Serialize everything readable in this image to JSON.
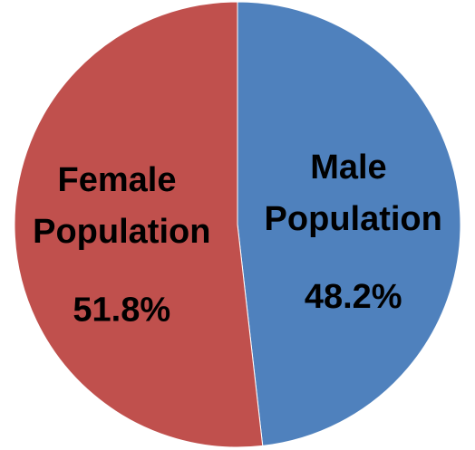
{
  "chart_data": {
    "type": "pie",
    "categories": [
      "Male Population",
      "Female Population"
    ],
    "values": [
      48.2,
      51.8
    ],
    "value_labels": [
      "48.2%",
      "51.8%"
    ],
    "colors": [
      "#4f81bd",
      "#c0504d"
    ]
  }
}
